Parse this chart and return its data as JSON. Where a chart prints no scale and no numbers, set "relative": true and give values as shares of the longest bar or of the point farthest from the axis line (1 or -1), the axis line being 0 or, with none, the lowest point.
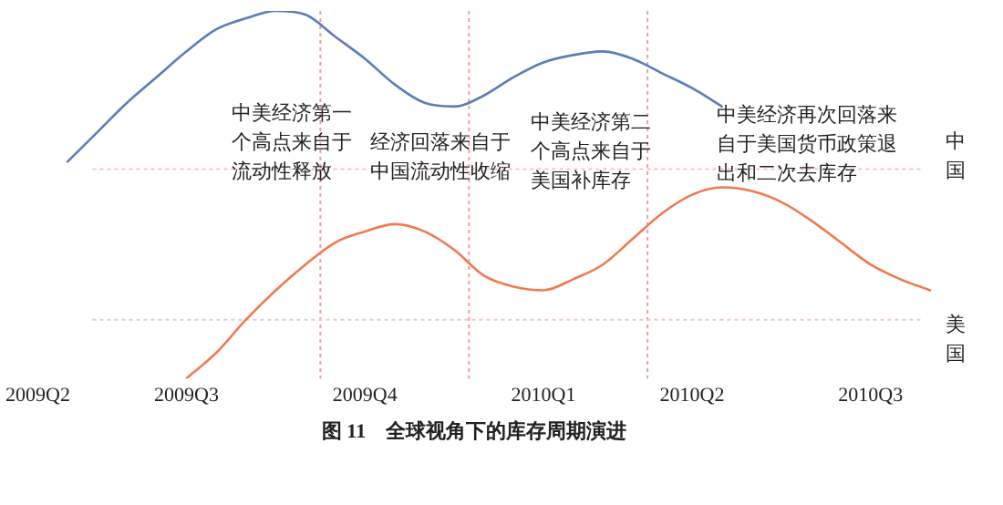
{
  "chart_data": {
    "type": "line",
    "title": "图 11    全球视角下的库存周期演进",
    "relative": true,
    "grid": false,
    "legend": false,
    "marker": "none",
    "line_style": "solid",
    "categories": [
      "2009Q2",
      null,
      null,
      null,
      null,
      "2009Q3",
      null,
      null,
      null,
      null,
      null,
      "2009Q4",
      null,
      null,
      null,
      null,
      null,
      "2010Q1",
      null,
      null,
      null,
      null,
      "2010Q2",
      null,
      null,
      null,
      null,
      null,
      "2010Q3",
      null,
      null
    ],
    "series": [
      {
        "name": "中国",
        "color": "#5b7db8",
        "values": [
          null,
          0.59,
          0.67,
          0.75,
          0.82,
          0.89,
          0.95,
          0.98,
          1.0,
          0.99,
          0.93,
          0.87,
          0.8,
          0.75,
          0.74,
          0.77,
          0.82,
          0.86,
          0.88,
          0.89,
          0.87,
          0.83,
          0.79,
          0.74,
          null,
          null,
          null,
          null,
          null,
          null,
          null
        ]
      },
      {
        "name": "美国",
        "color": "#f07a50",
        "values": [
          null,
          null,
          null,
          null,
          null,
          0,
          0.07,
          0.16,
          0.24,
          0.31,
          0.37,
          0.4,
          0.42,
          0.4,
          0.35,
          0.28,
          0.25,
          0.24,
          0.27,
          0.31,
          0.38,
          0.45,
          0.5,
          0.52,
          0.51,
          0.48,
          0.43,
          0.37,
          0.31,
          0.27,
          0.24
        ]
      }
    ],
    "ref_lines": [
      {
        "axis": "y",
        "value": 0.57,
        "color": "#f0c8c8",
        "line_style": "dotted"
      },
      {
        "axis": "y",
        "value": 0.16,
        "color": "#f0c8c8",
        "line_style": "dotted"
      }
    ],
    "annotations": [
      "中美经济第一个高点来自于流动性释放",
      "经济回落来自于中国流动性收缩",
      "中美经济第二个高点来自于美国补库存",
      "中美经济再次回落来自于美国货币政策退出和二次去库存"
    ]
  }
}
